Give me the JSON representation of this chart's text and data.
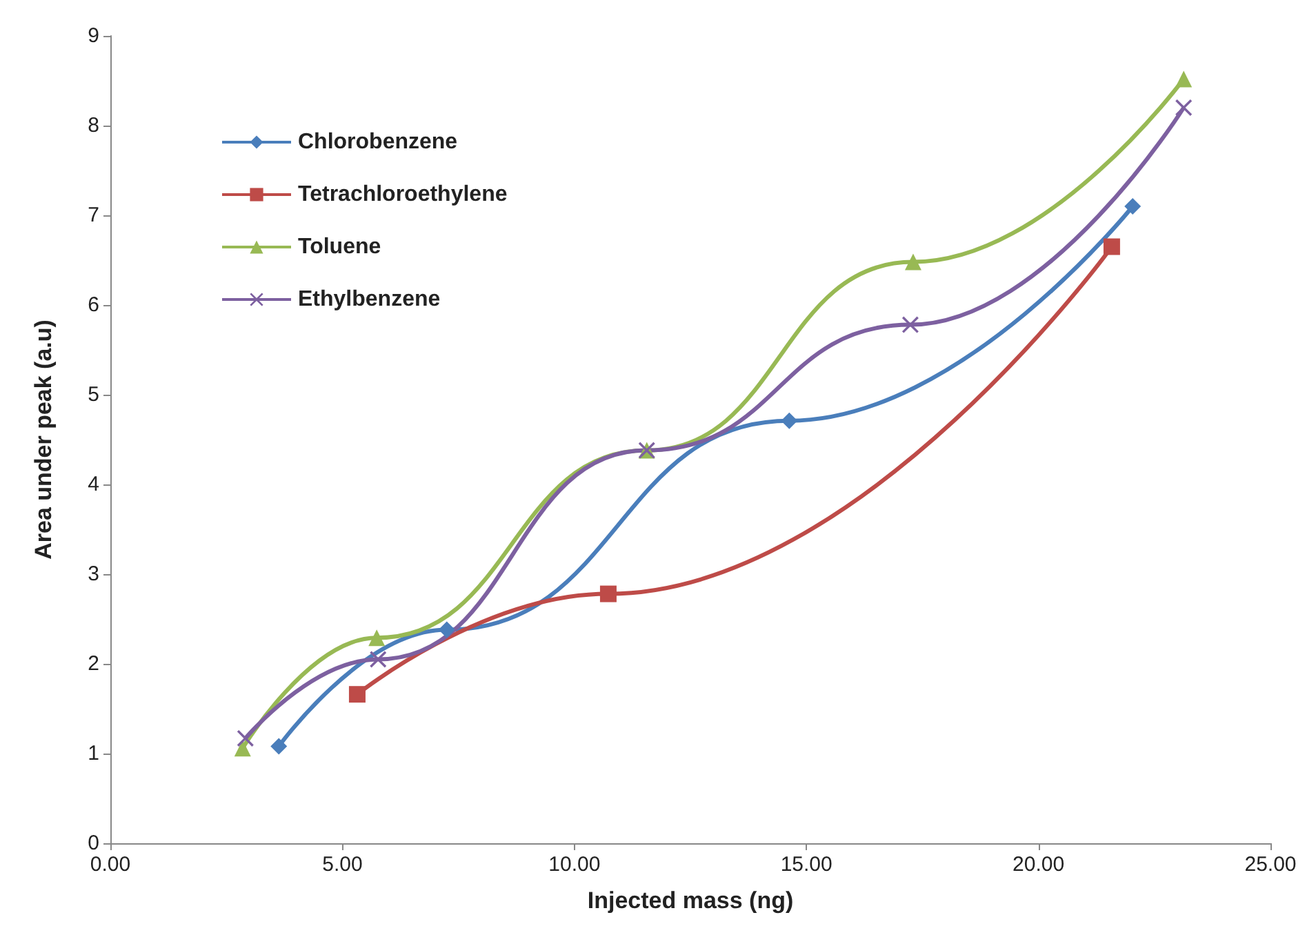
{
  "chart_data": {
    "type": "line",
    "xlabel": "Injected mass (ng)",
    "ylabel": "Area under peak (a.u)",
    "xlim": [
      0,
      25
    ],
    "xticks": [
      {
        "value": 0,
        "label": "0.00"
      },
      {
        "value": 5,
        "label": "5.00"
      },
      {
        "value": 10,
        "label": "10.00"
      },
      {
        "value": 15,
        "label": "15.00"
      },
      {
        "value": 20,
        "label": "20.00"
      },
      {
        "value": 25,
        "label": "25.00"
      }
    ],
    "ylim": [
      0,
      9
    ],
    "yticks": [
      0,
      1,
      2,
      3,
      4,
      5,
      6,
      7,
      8,
      9
    ],
    "grid": false,
    "legend": "top left",
    "series": [
      {
        "name": "Chlorobenzene",
        "color": "#4a7ebb",
        "marker": "diamond",
        "x": [
          3.63,
          7.25,
          14.63,
          22.03
        ],
        "values": [
          1.08,
          2.38,
          4.71,
          7.1
        ]
      },
      {
        "name": "Tetrachloroethylene",
        "color": "#be4b48",
        "marker": "square",
        "x": [
          5.32,
          10.73,
          21.58
        ],
        "values": [
          1.66,
          2.78,
          6.65
        ]
      },
      {
        "name": "Toluene",
        "color": "#98b954",
        "marker": "triangle",
        "x": [
          2.85,
          5.74,
          11.56,
          17.3,
          23.13
        ],
        "values": [
          1.06,
          2.29,
          4.38,
          6.48,
          8.52
        ]
      },
      {
        "name": "Ethylbenzene",
        "color": "#7d60a0",
        "marker": "cross",
        "x": [
          2.91,
          5.77,
          11.56,
          17.24,
          23.13
        ],
        "values": [
          1.17,
          2.05,
          4.38,
          5.78,
          8.2
        ]
      }
    ]
  }
}
